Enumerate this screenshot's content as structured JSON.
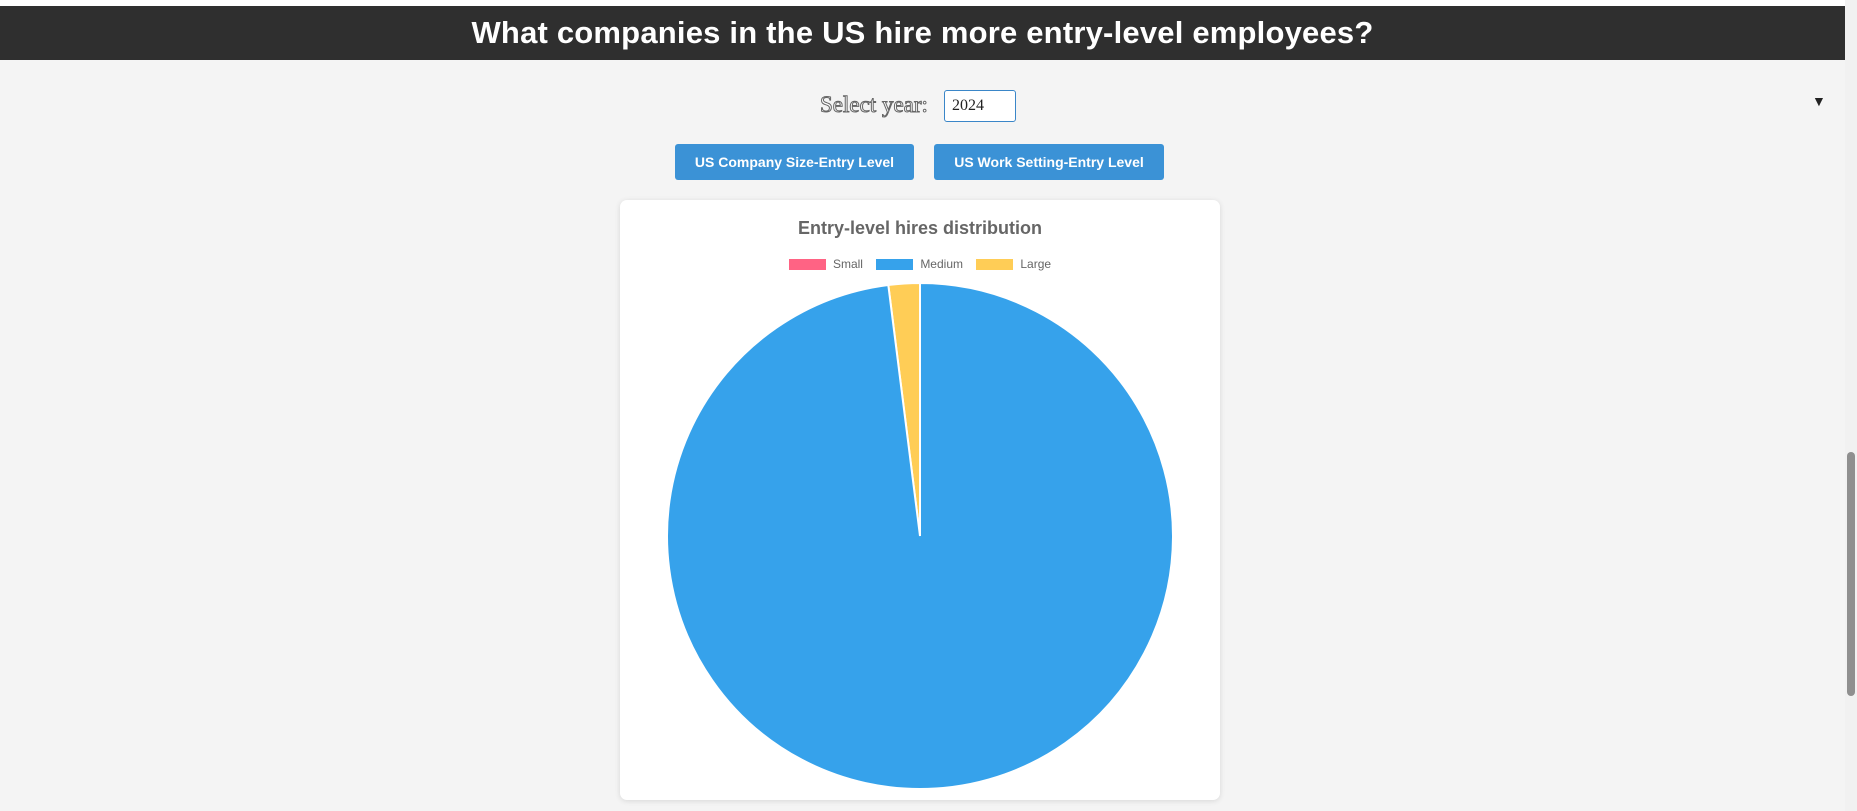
{
  "header": {
    "title": "What companies in the US hire more entry-level employees?"
  },
  "year_selector": {
    "label": "Select year:",
    "value": "2024",
    "arrow": "▼"
  },
  "buttons": {
    "company_size": "US Company Size-Entry Level",
    "work_setting": "US Work Setting-Entry Level"
  },
  "chart_data": {
    "type": "pie",
    "title": "Entry-level hires distribution",
    "legend_position": "top",
    "categories": [
      "Small",
      "Medium",
      "Large"
    ],
    "values": [
      0,
      98,
      2
    ],
    "colors": [
      "#ff6384",
      "#36a2eb",
      "#ffcd56"
    ]
  }
}
